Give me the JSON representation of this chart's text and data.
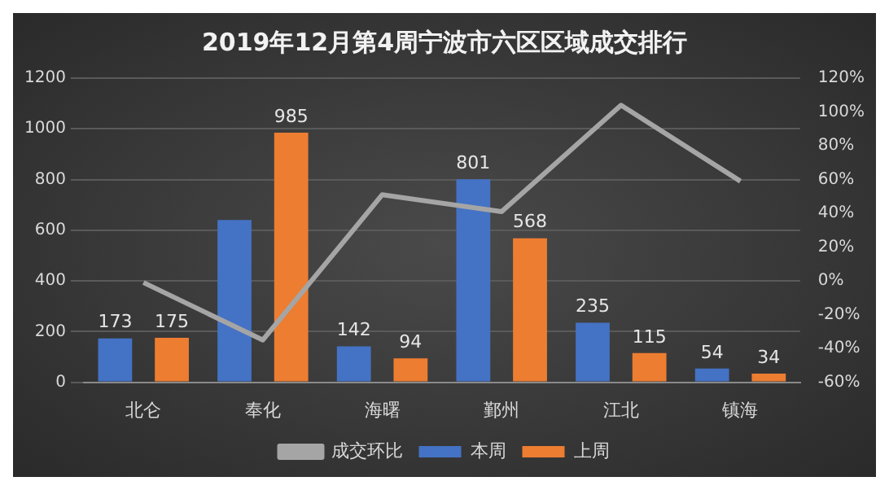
{
  "chart_data": {
    "type": "bar",
    "title": "2019年12月第4周宁波市六区区域成交排行",
    "categories": [
      "北仑",
      "奉化",
      "海曙",
      "鄞州",
      "江北",
      "镇海"
    ],
    "series": [
      {
        "name": "本周",
        "color": "#4472c4",
        "values": [
          173,
          640,
          142,
          801,
          235,
          54
        ],
        "value_labels": [
          "173",
          null,
          "142",
          "801",
          "235",
          "54"
        ]
      },
      {
        "name": "上周",
        "color": "#ed7d31",
        "values": [
          175,
          985,
          94,
          568,
          115,
          34
        ],
        "value_labels": [
          "175",
          "985",
          "94",
          "568",
          "115",
          "34"
        ]
      },
      {
        "name": "成交环比",
        "type": "line",
        "axis": "y2",
        "color": "#a5a5a5",
        "values": [
          -1,
          -35,
          51,
          41,
          104,
          59
        ]
      }
    ],
    "ylim": [
      0,
      1200
    ],
    "yticks": [
      0,
      200,
      400,
      600,
      800,
      1000,
      1200
    ],
    "y2lim": [
      -60,
      120
    ],
    "y2ticks": [
      {
        "value": -60,
        "label": "-60%"
      },
      {
        "value": -40,
        "label": "-40%"
      },
      {
        "value": -20,
        "label": "-20%"
      },
      {
        "value": 0,
        "label": "0%"
      },
      {
        "value": 20,
        "label": "20%"
      },
      {
        "value": 40,
        "label": "40%"
      },
      {
        "value": 60,
        "label": "60%"
      },
      {
        "value": 80,
        "label": "80%"
      },
      {
        "value": 100,
        "label": "100%"
      },
      {
        "value": 120,
        "label": "120%"
      }
    ],
    "grid": "y",
    "legend": "bottom",
    "marker": "none",
    "line_style": "solid"
  }
}
